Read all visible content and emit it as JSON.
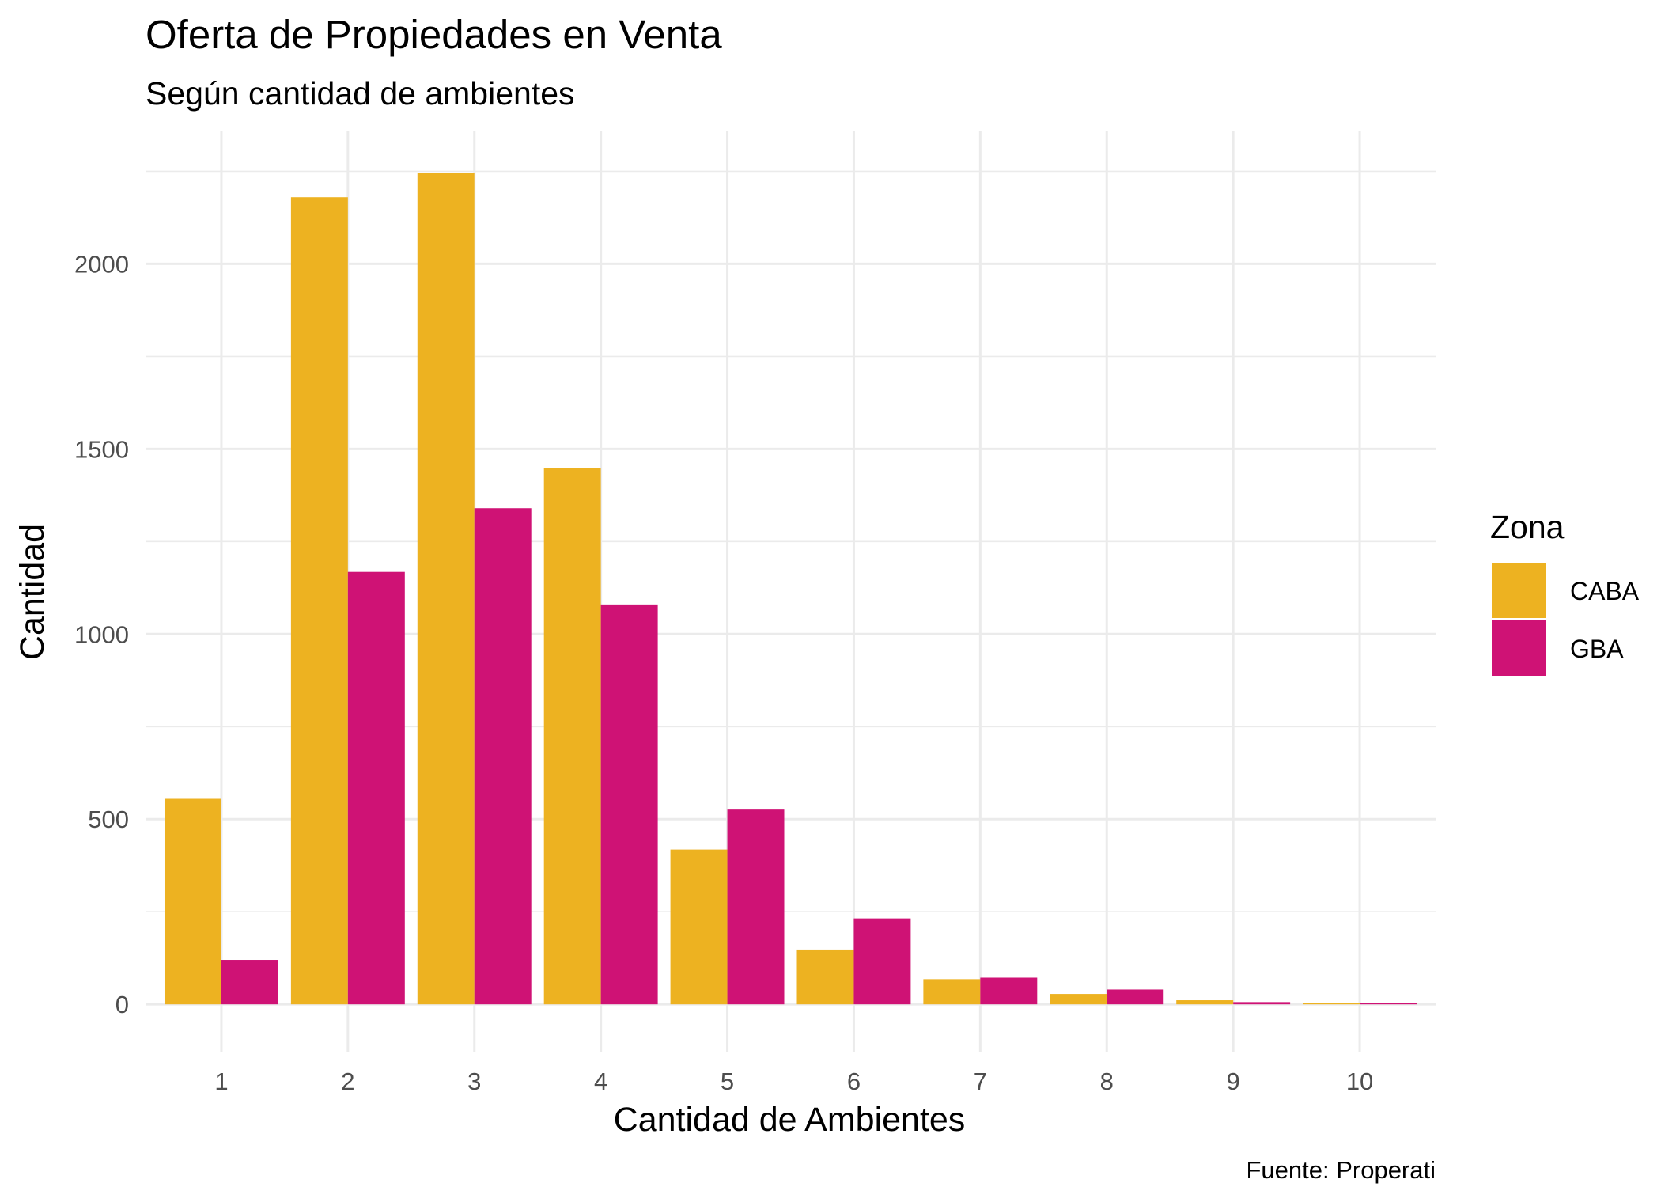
{
  "colors": {
    "CABA": "#EDB221",
    "GBA": "#CF1275"
  },
  "chart_data": {
    "type": "bar",
    "title": "Oferta de Propiedades en Venta",
    "subtitle": "Según cantidad de ambientes",
    "xlabel": "Cantidad de Ambientes",
    "ylabel": "Cantidad",
    "caption": "Fuente: Properati",
    "legend_title": "Zona",
    "legend_position": "right",
    "grid": true,
    "categories": [
      "1",
      "2",
      "3",
      "4",
      "5",
      "6",
      "7",
      "8",
      "9",
      "10"
    ],
    "series": [
      {
        "name": "CABA",
        "values": [
          555,
          2180,
          2245,
          1448,
          418,
          148,
          68,
          28,
          11,
          3
        ]
      },
      {
        "name": "GBA",
        "values": [
          120,
          1168,
          1340,
          1080,
          528,
          232,
          72,
          40,
          6,
          3
        ]
      }
    ],
    "y_ticks": [
      0,
      500,
      1000,
      1500,
      2000
    ],
    "ylim": [
      -130,
      2360
    ]
  }
}
